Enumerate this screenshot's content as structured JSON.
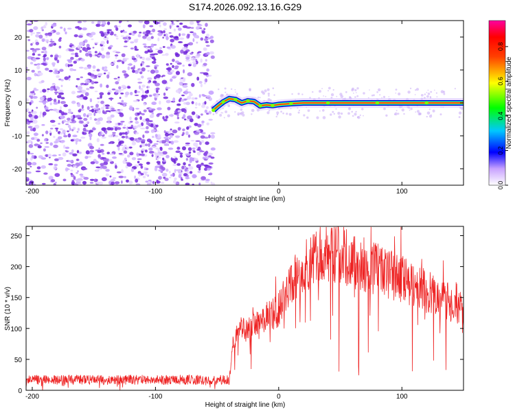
{
  "title": "S174.2026.092.13.16.G29",
  "colors": {
    "background": "#ffffff",
    "snr_line": "#ee2222",
    "scatter": "#8a2be2",
    "track_core": "#ff1a1a",
    "track_mid": "#7cfc00",
    "track_outer": "#0000cd"
  },
  "chart_data": [
    {
      "type": "heatmap",
      "xlabel": "Height of straight line (km)",
      "ylabel": "Frequency (Hz)",
      "xlim": [
        -205,
        150
      ],
      "ylim": [
        -25,
        25
      ],
      "x_ticks": [
        -200,
        -100,
        0,
        100
      ],
      "y_ticks": [
        20,
        10,
        0,
        -10,
        -20
      ],
      "noise_region_x": [
        -205,
        -53
      ],
      "track": {
        "x": [
          -53,
          -50,
          -45,
          -40,
          -35,
          -30,
          -25,
          -20,
          -15,
          -10,
          -5,
          0,
          10,
          20,
          40,
          60,
          80,
          100,
          120,
          150
        ],
        "y": [
          -2.2,
          -1.2,
          0.3,
          1.3,
          1.0,
          0.0,
          0.6,
          0.4,
          -0.9,
          -0.6,
          -0.8,
          -0.5,
          -0.2,
          0.0,
          0.0,
          0.0,
          0.0,
          0.0,
          0.0,
          0.0
        ]
      },
      "colorbar": {
        "label": "Normalized spectral amplitude",
        "ticks": [
          "0.0",
          "0.2",
          "0.4",
          "0.6",
          "0.8"
        ],
        "range": [
          0,
          0.95
        ]
      }
    },
    {
      "type": "line",
      "xlabel": "Height of straight line (km)",
      "ylabel": "SNR (10 * v/v)",
      "xlim": [
        -205,
        150
      ],
      "ylim": [
        0,
        265
      ],
      "x_ticks": [
        -200,
        -100,
        0,
        100
      ],
      "y_ticks": [
        0,
        50,
        100,
        150,
        200,
        250
      ],
      "series": [
        {
          "name": "SNR",
          "x": [
            -205,
            -150,
            -100,
            -60,
            -40,
            -38,
            -35,
            -30,
            -20,
            -10,
            0,
            10,
            20,
            30,
            40,
            50,
            60,
            80,
            100,
            120,
            140,
            150
          ],
          "values": [
            17,
            17,
            17,
            17,
            17,
            60,
            85,
            95,
            110,
            120,
            130,
            170,
            200,
            215,
            220,
            220,
            210,
            195,
            180,
            160,
            140,
            130
          ]
        }
      ]
    }
  ]
}
